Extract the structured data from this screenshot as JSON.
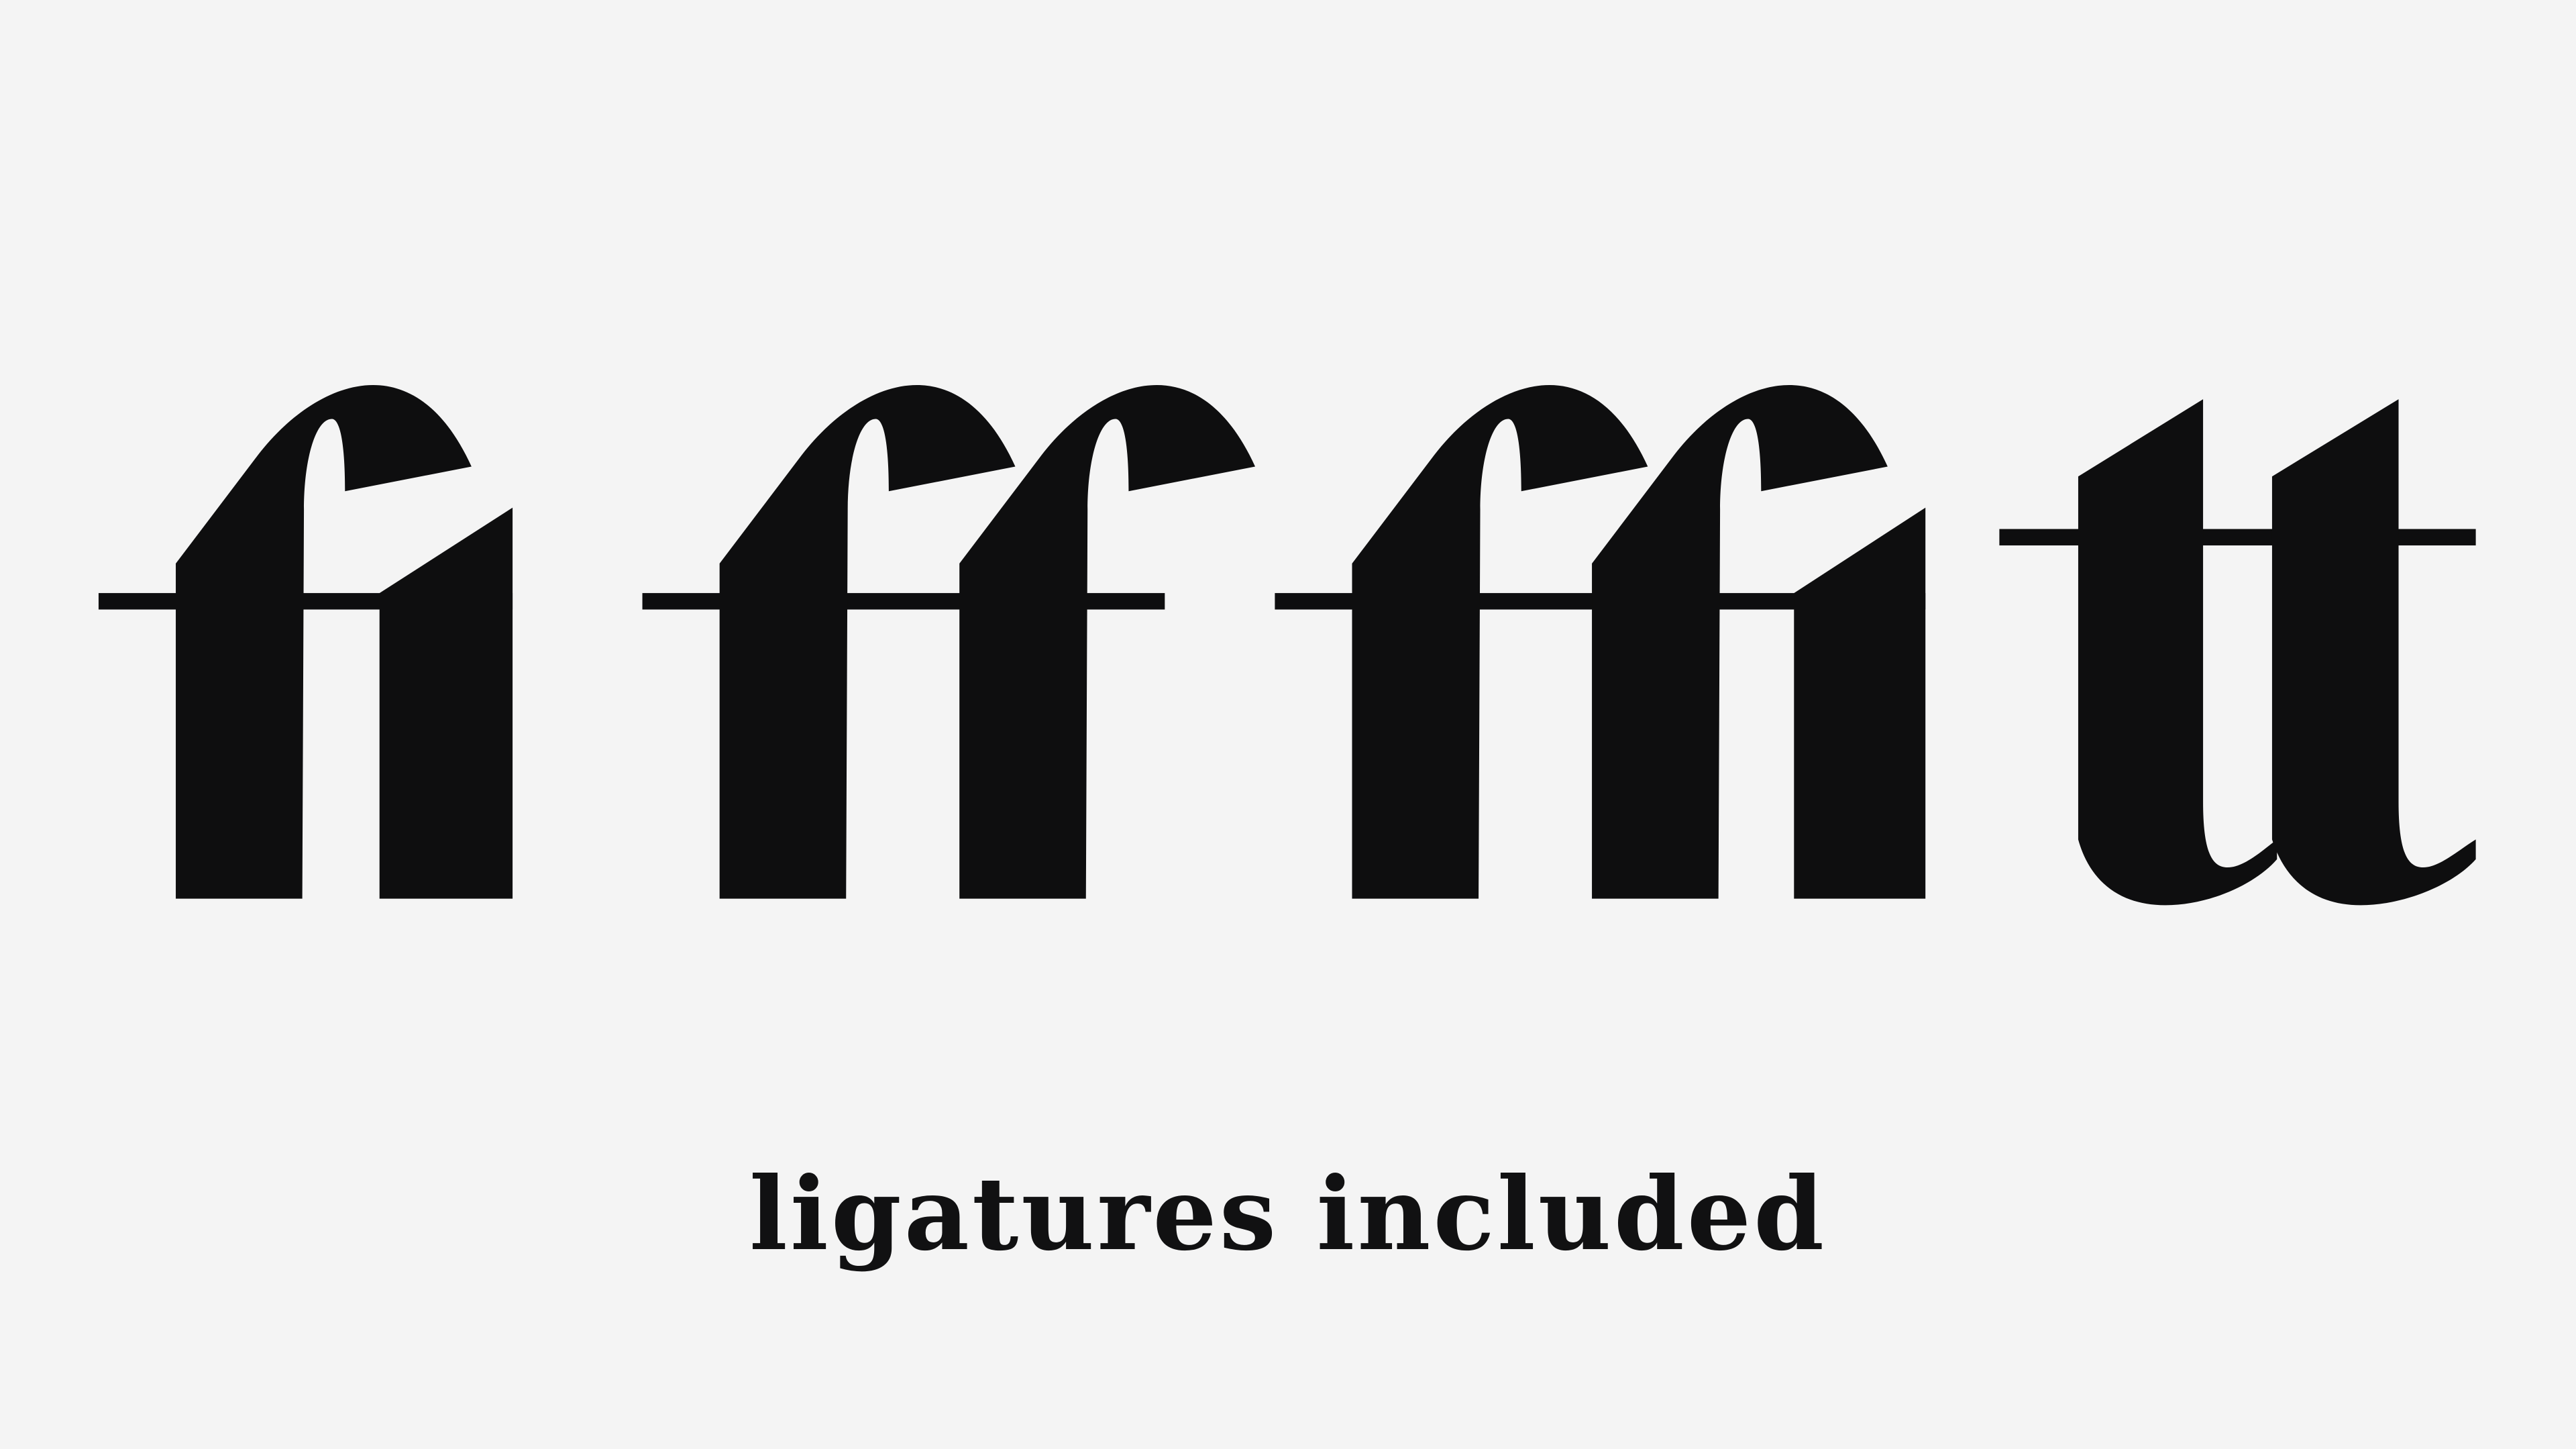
{
  "background_color": "#f4f4f4",
  "ink_color": "#0e0e0f",
  "ligatures": [
    {
      "glyph": "fi"
    },
    {
      "glyph": "ff"
    },
    {
      "glyph": "ffi"
    },
    {
      "glyph": "tt"
    }
  ],
  "caption": "ligatures included"
}
